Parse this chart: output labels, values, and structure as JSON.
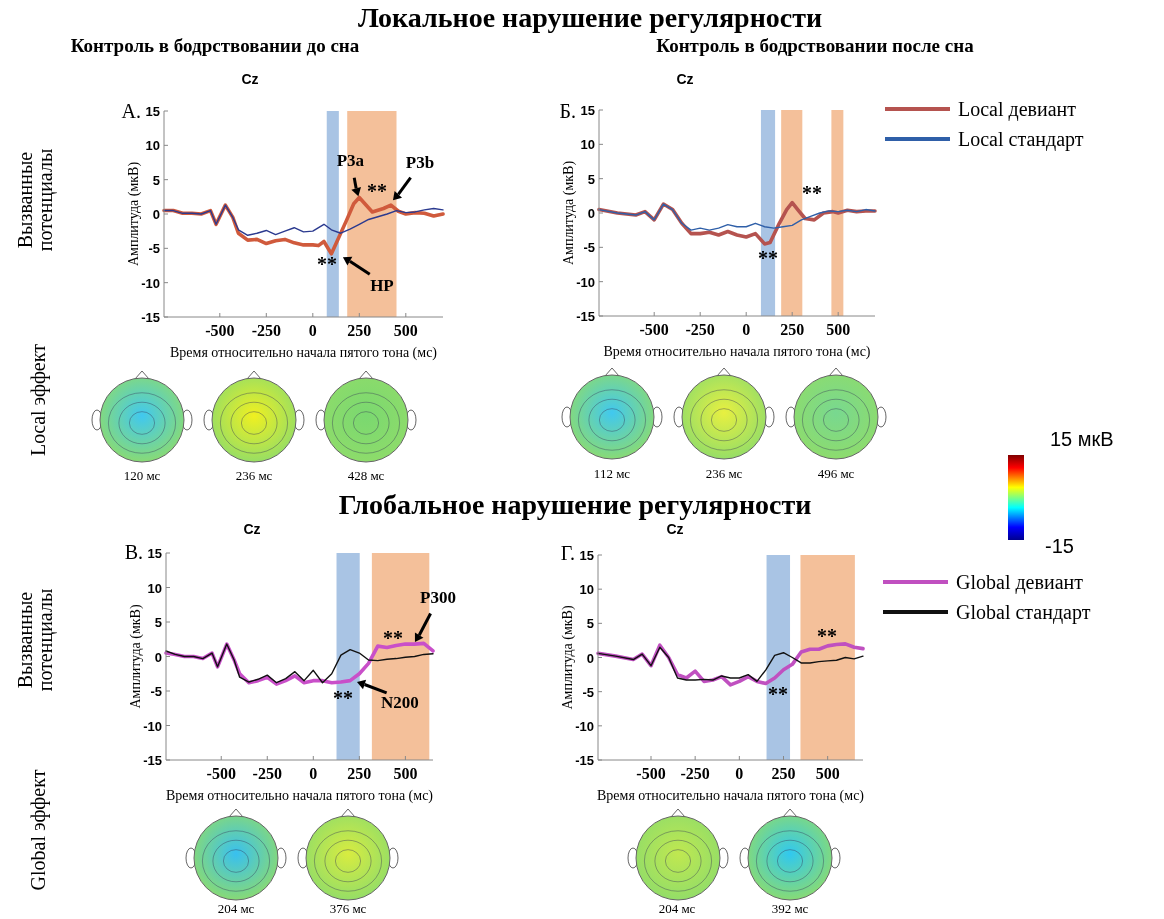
{
  "chart_data": [
    {
      "type": "line",
      "title": "Локальное нарушение регулярности",
      "subtitle": "Контроль в бодрствовании до сна",
      "xlabel": "Время относительно начала пятого тона (мс)",
      "ylabel": "Амплитуда (мкВ)",
      "xlim": [
        -800,
        700
      ],
      "xticks": [
        -500,
        -250,
        0,
        250,
        500
      ],
      "ylim": [
        -15,
        15
      ],
      "yticks": [
        -15,
        -10,
        -5,
        0,
        5,
        10,
        15
      ],
      "grid": false,
      "legend": false,
      "bands": [
        {
          "axis": "x",
          "from": 75,
          "to": 140,
          "color": "#a9c4e4"
        },
        {
          "axis": "x",
          "from": 185,
          "to": 450,
          "color": "#f4c09a"
        }
      ],
      "series": [
        {
          "color": "#d05a3c",
          "x": [
            -800,
            -750,
            -700,
            -650,
            -600,
            -550,
            -520,
            -470,
            -430,
            -400,
            -350,
            -300,
            -250,
            -200,
            -150,
            -100,
            -50,
            0,
            30,
            60,
            100,
            130,
            180,
            220,
            250,
            280,
            320,
            380,
            420,
            460,
            500,
            550,
            600,
            650,
            700
          ],
          "values": [
            0.5,
            0.5,
            0.1,
            0.1,
            0,
            0.5,
            -1.5,
            1.3,
            -0.5,
            -2.8,
            -3.8,
            -3.7,
            -4.3,
            -3.9,
            -3.7,
            -4.2,
            -4.5,
            -4.5,
            -4.6,
            -4,
            -5.8,
            -4,
            -1,
            1.5,
            2.4,
            1.5,
            0.3,
            0.8,
            1.3,
            0.4,
            0,
            0.2,
            0.1,
            -0.3,
            0
          ]
        },
        {
          "color": "#2b3a8f",
          "x": [
            -800,
            -750,
            -700,
            -650,
            -600,
            -550,
            -520,
            -470,
            -430,
            -400,
            -350,
            -300,
            -250,
            -200,
            -150,
            -100,
            -50,
            0,
            60,
            100,
            150,
            200,
            250,
            300,
            350,
            400,
            450,
            500,
            550,
            600,
            650,
            700
          ],
          "values": [
            0.5,
            0.5,
            0.1,
            0.1,
            0,
            0.5,
            -1.5,
            1.3,
            -0.5,
            -2.3,
            -3.1,
            -2.8,
            -2.4,
            -3,
            -2.5,
            -2,
            -2.6,
            -2.5,
            -1.5,
            -2.3,
            -2.8,
            -2.2,
            -1.5,
            -0.8,
            -0.4,
            0,
            0.5,
            0.2,
            0.3,
            0.6,
            0.8,
            0.6
          ]
        }
      ],
      "annotations": [
        "Cz",
        "А.",
        "Вызванные потенциалы",
        "Local эффект",
        "120 мс",
        "236 мс",
        "428 мс",
        "**",
        "**",
        {
          "text": "P3a",
          "x": 245,
          "y": 2.6
        },
        {
          "text": "P3b",
          "x": 431,
          "y": 2
        },
        {
          "text": "HP",
          "x": 162,
          "y": -6.3
        }
      ]
    },
    {
      "type": "line",
      "subtitle": "Контроль в бодрствовании после сна",
      "xlabel": "Время относительно начала пятого тона (мс)",
      "ylabel": "Амплитуда (мкВ)",
      "xlim": [
        -800,
        700
      ],
      "xticks": [
        -500,
        -250,
        0,
        250,
        500
      ],
      "ylim": [
        -15,
        15
      ],
      "yticks": [
        -15,
        -10,
        -5,
        0,
        5,
        10,
        15
      ],
      "grid": false,
      "legend": "right",
      "bands": [
        {
          "axis": "x",
          "from": 80,
          "to": 157,
          "color": "#a9c4e4"
        },
        {
          "axis": "x",
          "from": 190,
          "to": 305,
          "color": "#f4c09a"
        },
        {
          "axis": "x",
          "from": 463,
          "to": 528,
          "color": "#f4c09a"
        }
      ],
      "series": [
        {
          "name": "Local девиант",
          "color": "#b5534f",
          "x": [
            -800,
            -700,
            -600,
            -550,
            -500,
            -450,
            -400,
            -350,
            -300,
            -250,
            -200,
            -150,
            -100,
            -50,
            0,
            50,
            100,
            130,
            180,
            220,
            250,
            280,
            320,
            370,
            420,
            470,
            500,
            550,
            600,
            650,
            700
          ],
          "values": [
            0.5,
            0,
            -0.3,
            0.2,
            -1,
            1.3,
            0.5,
            -1.5,
            -3,
            -3,
            -2.8,
            -3.2,
            -2.7,
            -3.2,
            -3.5,
            -3,
            -4.5,
            -4.3,
            -1.5,
            0.5,
            1.5,
            0.5,
            -0.8,
            -1,
            0,
            0.2,
            0,
            0.4,
            0.2,
            0.3,
            0.3
          ]
        },
        {
          "name": "Local стандарт",
          "color": "#2f5fa8",
          "x": [
            -800,
            -700,
            -600,
            -550,
            -500,
            -450,
            -400,
            -350,
            -300,
            -250,
            -200,
            -150,
            -100,
            -50,
            0,
            50,
            100,
            150,
            200,
            250,
            300,
            350,
            400,
            450,
            500,
            550,
            600,
            650,
            700
          ],
          "values": [
            0.5,
            0,
            -0.3,
            0.2,
            -1,
            1.3,
            0.5,
            -1.5,
            -2.5,
            -2.2,
            -2.5,
            -2.2,
            -1.7,
            -2,
            -2,
            -1.5,
            -2,
            -2.2,
            -2,
            -1.8,
            -1,
            -0.5,
            0,
            0.3,
            0.2,
            0.4,
            0.2,
            0.5,
            0.3
          ]
        }
      ],
      "annotations": [
        "Cz",
        "Б.",
        "112 мс",
        "236 мс",
        "496 мс",
        "**",
        "**"
      ]
    },
    {
      "type": "line",
      "title": "Глобальное нарушение регулярности",
      "xlabel": "Время относительно начала пятого тона (мс)",
      "ylabel": "Амплитуда (мкВ)",
      "xlim": [
        -800,
        650
      ],
      "xticks": [
        -500,
        -250,
        0,
        250,
        500
      ],
      "ylim": [
        -15,
        15
      ],
      "yticks": [
        -15,
        -10,
        -5,
        0,
        5,
        10,
        15
      ],
      "grid": false,
      "legend": false,
      "bands": [
        {
          "axis": "x",
          "from": 126,
          "to": 252,
          "color": "#a9c4e4"
        },
        {
          "axis": "x",
          "from": 318,
          "to": 630,
          "color": "#f4c09a"
        }
      ],
      "series": [
        {
          "color": "#c94fc9",
          "x": [
            -800,
            -750,
            -700,
            -650,
            -600,
            -550,
            -520,
            -470,
            -430,
            -400,
            -350,
            -300,
            -250,
            -200,
            -150,
            -100,
            -50,
            0,
            50,
            100,
            150,
            200,
            250,
            300,
            350,
            400,
            450,
            500,
            550,
            600,
            650
          ],
          "values": [
            0.5,
            0.3,
            0,
            0,
            -0.3,
            0.5,
            -1.5,
            1.8,
            -0.5,
            -2.5,
            -3.8,
            -3.5,
            -3,
            -4,
            -3.5,
            -2.8,
            -3.8,
            -3.5,
            -3.5,
            -3.8,
            -3.7,
            -3.5,
            -2.5,
            -1,
            1.5,
            1.3,
            1.6,
            1.8,
            1.8,
            1.9,
            0.8
          ]
        },
        {
          "color": "#111111",
          "x": [
            -800,
            -750,
            -700,
            -650,
            -600,
            -550,
            -520,
            -470,
            -430,
            -400,
            -350,
            -300,
            -250,
            -200,
            -150,
            -100,
            -50,
            0,
            50,
            100,
            150,
            200,
            250,
            300,
            350,
            400,
            450,
            500,
            550,
            600,
            650
          ],
          "values": [
            0.8,
            0.3,
            0,
            0,
            -0.3,
            0.5,
            -1.5,
            1.8,
            -0.5,
            -3,
            -3.7,
            -3.3,
            -2.7,
            -3.8,
            -3.2,
            -2.2,
            -3.5,
            -2,
            -3.8,
            -2.5,
            0.2,
            1,
            0.5,
            -0.5,
            -0.6,
            -0.4,
            -0.3,
            -0.1,
            0,
            0.3,
            0.4
          ]
        }
      ],
      "annotations": [
        "Cz",
        "В.",
        "Вызванные потенциалы",
        "Global эффект",
        "204 мс",
        "376 мс",
        "**",
        "**",
        {
          "text": "P300",
          "x": 552,
          "y": 2.1
        },
        {
          "text": "N200",
          "x": 237,
          "y": -3.7
        }
      ]
    },
    {
      "type": "line",
      "xlabel": "Время относительно начала пятого тона (мс)",
      "ylabel": "Амплитуда (мкВ)",
      "xlim": [
        -800,
        700
      ],
      "xticks": [
        -500,
        -250,
        0,
        250,
        500
      ],
      "ylim": [
        -15,
        15
      ],
      "yticks": [
        -15,
        -10,
        -5,
        0,
        5,
        10,
        15
      ],
      "grid": false,
      "legend": "right",
      "bands": [
        {
          "axis": "x",
          "from": 154,
          "to": 287,
          "color": "#a9c4e4"
        },
        {
          "axis": "x",
          "from": 346,
          "to": 654,
          "color": "#f4c09a"
        }
      ],
      "series": [
        {
          "name": "Global девиант",
          "color": "#c050c0",
          "x": [
            -800,
            -700,
            -600,
            -550,
            -500,
            -450,
            -400,
            -350,
            -300,
            -250,
            -200,
            -150,
            -100,
            -50,
            0,
            50,
            100,
            150,
            200,
            250,
            300,
            350,
            400,
            450,
            500,
            550,
            600,
            650,
            700
          ],
          "values": [
            0.6,
            0.2,
            -0.3,
            0.5,
            -1.2,
            1.8,
            0,
            -2.5,
            -3,
            -2,
            -3.5,
            -3.3,
            -2.8,
            -4,
            -3.5,
            -2.8,
            -3.5,
            -3.8,
            -3,
            -1.8,
            -1,
            0.8,
            1.2,
            1.2,
            1.7,
            1.9,
            2,
            1.5,
            1.3
          ]
        },
        {
          "name": "Global стандарт",
          "color": "#111111",
          "x": [
            -800,
            -700,
            -600,
            -550,
            -500,
            -450,
            -400,
            -350,
            -300,
            -250,
            -200,
            -150,
            -100,
            -50,
            0,
            50,
            100,
            150,
            200,
            250,
            300,
            350,
            400,
            450,
            500,
            550,
            600,
            650,
            700
          ],
          "values": [
            0.6,
            0.2,
            -0.3,
            0.5,
            -1.2,
            1.5,
            0,
            -3,
            -3.3,
            -3.3,
            -3.2,
            -3.3,
            -2.7,
            -3,
            -3,
            -2.5,
            -3.5,
            -1.8,
            0.3,
            0.7,
            0,
            -0.8,
            -0.8,
            -0.6,
            -0.5,
            -0.4,
            0,
            -0.2,
            0.2
          ]
        }
      ],
      "annotations": [
        "Cz",
        "Г.",
        "204 мс",
        "392 мс",
        "**",
        "**"
      ]
    },
    {
      "type": "other",
      "annotations": [
        "15 мкВ",
        "-15"
      ]
    }
  ]
}
